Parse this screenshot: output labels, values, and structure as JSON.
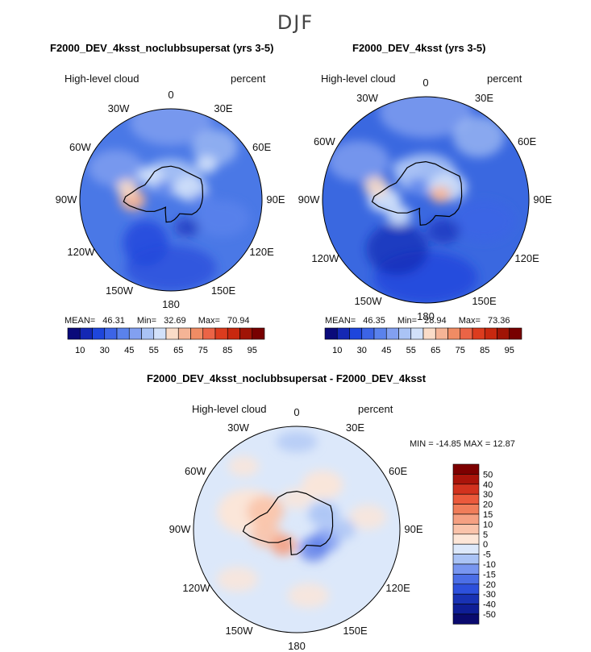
{
  "suptitle": "DJF",
  "panels": [
    {
      "title": "F2000_DEV_4ksst_noclubbsupersat (yrs 3-5)",
      "left_label": "High-level cloud",
      "right_label": "percent",
      "stats": {
        "mean_label": "MEAN=",
        "mean": "46.31",
        "min_label": "Min=",
        "min": "32.69",
        "max_label": "Max=",
        "max": "70.94"
      }
    },
    {
      "title": "F2000_DEV_4ksst (yrs 3-5)",
      "left_label": "High-level cloud",
      "right_label": "percent",
      "stats": {
        "mean_label": "MEAN=",
        "mean": "46.35",
        "min_label": "Min=",
        "min": "28.94",
        "max_label": "Max=",
        "max": "73.36"
      }
    },
    {
      "title": "F2000_DEV_4ksst_noclubbsupersat - F2000_DEV_4ksst",
      "left_label": "High-level cloud",
      "right_label": "percent",
      "minmax": "MIN = -14.85 MAX =  12.87"
    }
  ],
  "lon_labels": [
    "0",
    "30E",
    "60E",
    "90E",
    "120E",
    "150E",
    "180",
    "150W",
    "120W",
    "90W",
    "60W",
    "30W"
  ],
  "colorbar_top": {
    "labels": [
      "10",
      "30",
      "45",
      "55",
      "65",
      "75",
      "85",
      "95"
    ],
    "colors": [
      "#0a0a7a",
      "#1428b4",
      "#1e46dc",
      "#3c64e6",
      "#5a82ec",
      "#82a0f0",
      "#aac3f5",
      "#d2e1fa",
      "#fadcc8",
      "#f5b496",
      "#f08c64",
      "#eb6446",
      "#dc3c1e",
      "#c8280f",
      "#a01405",
      "#780000"
    ]
  },
  "colorbar_diff": {
    "labels": [
      "50",
      "40",
      "30",
      "20",
      "15",
      "10",
      "5",
      "0",
      "-5",
      "-10",
      "-15",
      "-20",
      "-30",
      "-40",
      "-50"
    ],
    "colors": [
      "#7d0000",
      "#aa140a",
      "#d2321e",
      "#eb5a3c",
      "#f07d5a",
      "#f5a082",
      "#fac3aa",
      "#fde6d7",
      "#dce8fa",
      "#aac3f5",
      "#7896f0",
      "#4b6ee6",
      "#2d50dc",
      "#1932b4",
      "#0f1e96",
      "#0a0a6e"
    ]
  }
}
